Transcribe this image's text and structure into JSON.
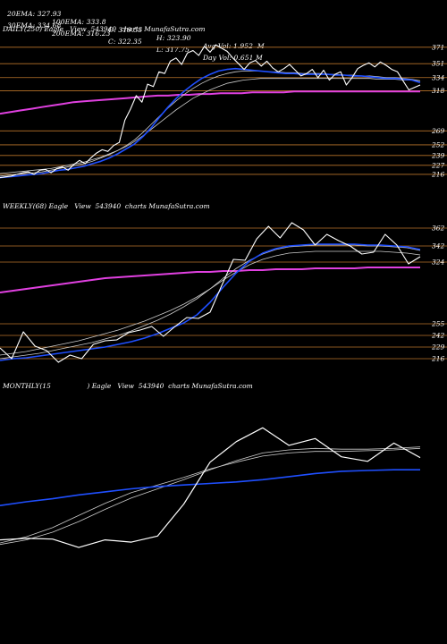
{
  "header": {
    "r1": [
      "20EMA: 327.93",
      "100EMA: 333.8",
      "O: 319.55",
      "H: 323.90",
      "Avg Vol: 1.952  M"
    ],
    "r2": [
      "30EMA: 334.68",
      "200EMA: 316.23",
      "C: 322.35",
      "L: 317.75",
      "Day Vol: 0.651 M"
    ]
  },
  "panels": {
    "daily": "DAILY(250) Eagle   View  543940  charts MunafaSutra.com",
    "weekly": "WEEKLY(68) Eagle   View  543940  charts MunafaSutra.com",
    "monthly": "MONTHLY(15                 ) Eagle   View  543940  charts MunafaSutra.com"
  },
  "colors": {
    "background": "#000000",
    "price": "#ffffff",
    "ema_fast": "#1f4fff",
    "ema_slow": "#e040e0",
    "ema_mid": "#cccccc",
    "level_line": "#b8732a"
  },
  "chart_data": [
    {
      "type": "line",
      "name": "daily",
      "ylim": [
        205,
        385
      ],
      "levels": [
        371,
        351,
        334,
        318,
        269,
        252,
        239,
        227,
        216
      ],
      "series": [
        {
          "role": "price",
          "values": [
            212,
            213,
            214,
            216,
            218,
            219,
            216,
            221,
            222,
            218,
            223,
            225,
            221,
            228,
            233,
            229,
            236,
            242,
            246,
            244,
            251,
            255,
            282,
            296,
            312,
            304,
            326,
            323,
            341,
            339,
            354,
            358,
            350,
            364,
            367,
            361,
            372,
            365,
            374,
            370,
            366,
            358,
            351,
            344,
            352,
            355,
            348,
            354,
            346,
            341,
            345,
            350,
            343,
            336,
            339,
            344,
            334,
            343,
            331,
            338,
            341,
            325,
            334,
            345,
            349,
            352,
            347,
            353,
            349,
            344,
            341,
            330,
            319,
            322,
            325
          ]
        },
        {
          "role": "ema_fast",
          "values": [
            212,
            213,
            214,
            215,
            216,
            217,
            219,
            221,
            222,
            224,
            226,
            229,
            232,
            236,
            241,
            247,
            253,
            262,
            273,
            286,
            298,
            309,
            318,
            326,
            333,
            338,
            342,
            344,
            345,
            344,
            343,
            342,
            341,
            340,
            339,
            339,
            338,
            338,
            338,
            338,
            337,
            337,
            336,
            336,
            335,
            334,
            333,
            333,
            332,
            331,
            328
          ]
        },
        {
          "role": "ema_mid_1",
          "values": [
            214,
            215,
            216,
            217,
            218,
            219,
            221,
            223,
            225,
            227,
            229,
            232,
            236,
            240,
            245,
            251,
            258,
            267,
            277,
            287,
            297,
            306,
            314,
            321,
            327,
            332,
            336,
            339,
            341,
            342,
            342,
            342,
            341,
            341,
            340,
            340,
            339,
            339,
            339,
            338,
            338,
            337,
            337,
            336,
            336,
            335,
            334,
            334,
            333,
            332,
            330
          ]
        },
        {
          "role": "ema_mid_2",
          "values": [
            217,
            218,
            219,
            220,
            221,
            222,
            223,
            225,
            227,
            229,
            231,
            234,
            237,
            241,
            245,
            250,
            256,
            263,
            271,
            279,
            287,
            295,
            302,
            309,
            314,
            319,
            323,
            327,
            329,
            331,
            332,
            333,
            333,
            333,
            333,
            333,
            333,
            333,
            333,
            333,
            333,
            333,
            333,
            333,
            333,
            332,
            332,
            332,
            331,
            331,
            330
          ]
        },
        {
          "role": "ema_slow",
          "values": [
            290,
            292,
            294,
            296,
            298,
            300,
            302,
            304,
            305,
            306,
            307,
            308,
            309,
            310,
            311,
            312,
            312,
            313,
            313,
            314,
            314,
            315,
            315,
            315,
            316,
            316,
            316,
            316,
            317,
            317,
            317,
            317,
            317,
            317,
            317,
            317,
            317,
            317,
            317,
            317,
            317
          ]
        }
      ],
      "tick_labels": [
        "371",
        "351",
        "334",
        "318",
        "269",
        "252",
        "239",
        "227",
        "216"
      ]
    },
    {
      "type": "line",
      "name": "weekly",
      "ylim": [
        210,
        380
      ],
      "levels": [
        362,
        342,
        324,
        255,
        242,
        229,
        216
      ],
      "series": [
        {
          "role": "price",
          "values": [
            228,
            216,
            246,
            230,
            225,
            212,
            220,
            216,
            232,
            236,
            237,
            245,
            248,
            252,
            241,
            252,
            262,
            261,
            268,
            298,
            327,
            326,
            350,
            364,
            351,
            368,
            360,
            343,
            355,
            348,
            342,
            333,
            335,
            355,
            343,
            322,
            330
          ]
        },
        {
          "role": "ema_fast",
          "values": [
            214,
            216,
            217,
            219,
            221,
            223,
            225,
            227,
            229,
            232,
            235,
            239,
            244,
            250,
            256,
            265,
            279,
            296,
            312,
            325,
            334,
            339,
            342,
            343,
            344,
            344,
            344,
            344,
            343,
            343,
            342,
            341,
            338
          ]
        },
        {
          "role": "ema_mid_1",
          "values": [
            216,
            218,
            220,
            222,
            225,
            228,
            231,
            234,
            238,
            242,
            247,
            253,
            259,
            266,
            274,
            283,
            294,
            306,
            317,
            326,
            333,
            338,
            341,
            342,
            343,
            343,
            343,
            343,
            342,
            342,
            341,
            340,
            337
          ]
        },
        {
          "role": "ema_mid_2",
          "values": [
            220,
            222,
            224,
            227,
            230,
            233,
            236,
            240,
            244,
            248,
            253,
            258,
            264,
            270,
            277,
            285,
            294,
            304,
            313,
            321,
            327,
            331,
            334,
            335,
            336,
            336,
            336,
            336,
            336,
            336,
            335,
            334,
            332
          ]
        },
        {
          "role": "ema_slow",
          "values": [
            290,
            292,
            294,
            296,
            298,
            300,
            302,
            304,
            306,
            307,
            308,
            309,
            310,
            311,
            312,
            313,
            313,
            314,
            314,
            315,
            315,
            316,
            316,
            316,
            317,
            317,
            317,
            317,
            318,
            318,
            318,
            318,
            318
          ]
        }
      ],
      "tick_labels": [
        "362",
        "342",
        "324",
        "255",
        "242",
        "229",
        "216"
      ]
    },
    {
      "type": "line",
      "name": "monthly",
      "ylim": [
        150,
        420
      ],
      "levels": [],
      "series": [
        {
          "role": "price",
          "values": [
            228,
            230,
            229,
            218,
            228,
            225,
            233,
            275,
            330,
            357,
            375,
            352,
            361,
            337,
            331,
            355,
            336
          ]
        },
        {
          "role": "ema_fast",
          "values": [
            273,
            278,
            282,
            287,
            291,
            295,
            298,
            300,
            302,
            304,
            307,
            311,
            315,
            318,
            319,
            320,
            320
          ]
        },
        {
          "role": "ema_mid_1",
          "values": [
            222,
            228,
            238,
            252,
            268,
            283,
            295,
            307,
            320,
            332,
            342,
            346,
            348,
            347,
            347,
            348,
            350
          ]
        },
        {
          "role": "ema_mid_2",
          "values": [
            224,
            232,
            244,
            260,
            276,
            290,
            300,
            310,
            321,
            330,
            338,
            342,
            344,
            344,
            345,
            346,
            348
          ]
        }
      ],
      "tick_labels": []
    }
  ]
}
